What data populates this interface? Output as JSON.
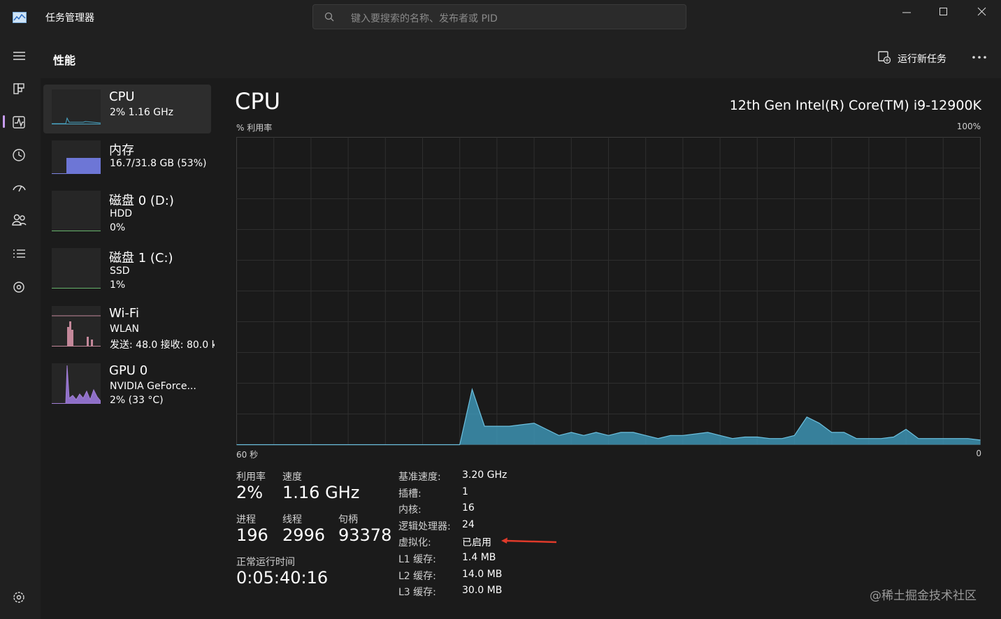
{
  "titlebar": {
    "title": "任务管理器",
    "search_placeholder": "键入要搜索的名称、发布者或 PID"
  },
  "header": {
    "page": "性能",
    "run_task": "运行新任务"
  },
  "devices": [
    {
      "name": "CPU",
      "details": [
        "2% 1.16 GHz"
      ]
    },
    {
      "name": "内存",
      "details": [
        "16.7/31.8 GB (53%)"
      ]
    },
    {
      "name": "磁盘 0 (D:)",
      "details": [
        "HDD",
        "0%"
      ]
    },
    {
      "name": "磁盘 1 (C:)",
      "details": [
        "SSD",
        "1%"
      ]
    },
    {
      "name": "Wi-Fi",
      "details": [
        "WLAN",
        "发送: 48.0 接收: 80.0 k"
      ]
    },
    {
      "name": "GPU 0",
      "details": [
        "NVIDIA GeForce...",
        "2% (33 °C)"
      ]
    }
  ],
  "cpu": {
    "title": "CPU",
    "model": "12th Gen Intel(R) Core(TM) i9-12900K",
    "graph": {
      "axis_label": "% 利用率",
      "max_label": "100%",
      "start_label": "60 秒",
      "end_label": "0",
      "ylim": [
        0,
        100
      ],
      "values": [
        0,
        0,
        0,
        0,
        0,
        0,
        0,
        0,
        0,
        0,
        0,
        0,
        0,
        0,
        0,
        0,
        0,
        0,
        0,
        18,
        6,
        6,
        6,
        6.5,
        7,
        5,
        3,
        4,
        3,
        4,
        3,
        4,
        4,
        3,
        2,
        3,
        3,
        3.5,
        4,
        3,
        2,
        2.5,
        2.5,
        2,
        2,
        3,
        9,
        7,
        4,
        4,
        2,
        2,
        2,
        2.5,
        5,
        2,
        2,
        2,
        2,
        2,
        1.5
      ]
    },
    "stats": [
      {
        "label": "利用率",
        "value": "2%"
      },
      {
        "label": "速度",
        "value": "1.16 GHz"
      },
      {
        "label": "进程",
        "value": "196"
      },
      {
        "label": "线程",
        "value": "2996"
      },
      {
        "label": "句柄",
        "value": "93378"
      },
      {
        "label": "正常运行时间",
        "value": "0:05:40:16"
      }
    ],
    "specs": [
      {
        "label": "基准速度:",
        "value": "3.20 GHz"
      },
      {
        "label": "插槽:",
        "value": "1"
      },
      {
        "label": "内核:",
        "value": "16"
      },
      {
        "label": "逻辑处理器:",
        "value": "24"
      },
      {
        "label": "虚拟化:",
        "value": "已启用"
      },
      {
        "label": "L1 缓存:",
        "value": "1.4 MB"
      },
      {
        "label": "L2 缓存:",
        "value": "14.0 MB"
      },
      {
        "label": "L3 缓存:",
        "value": "30.0 MB"
      }
    ]
  },
  "watermark": "@稀土掘金技术社区"
}
